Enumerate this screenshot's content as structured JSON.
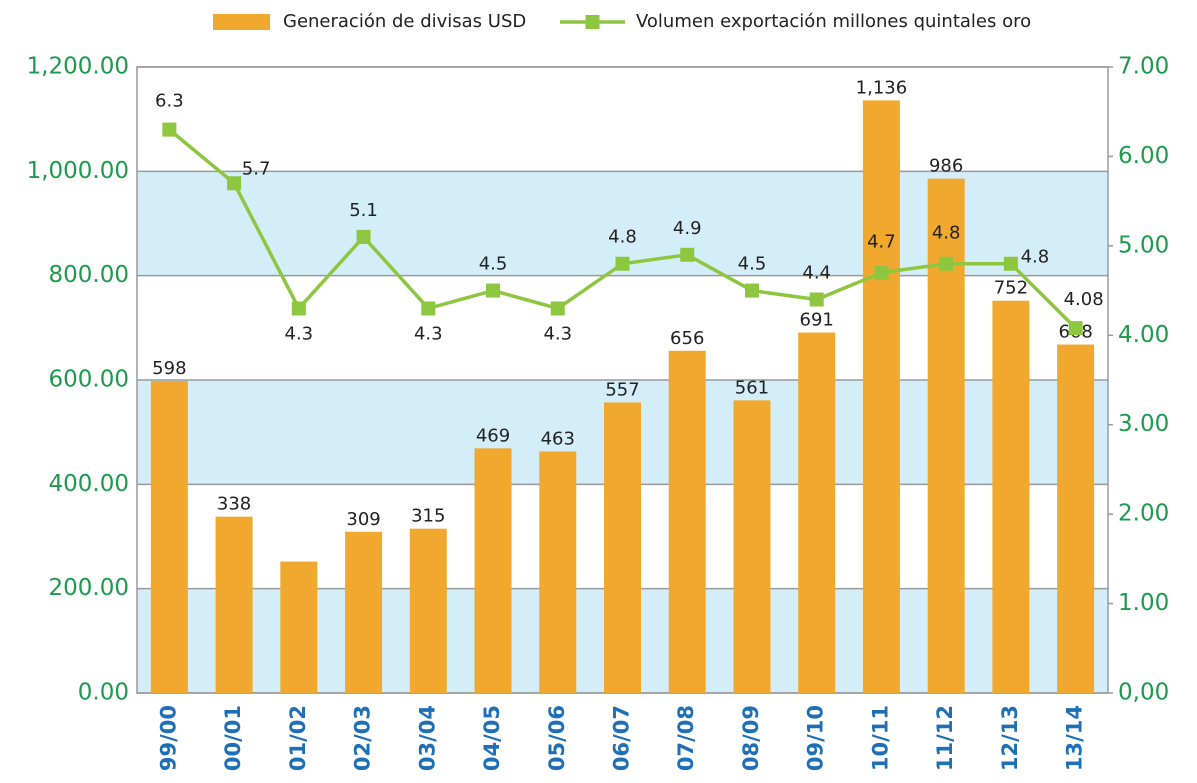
{
  "chart_data": {
    "type": "bar-line",
    "categories": [
      "99/00",
      "00/01",
      "01/02",
      "02/03",
      "03/04",
      "04/05",
      "05/06",
      "06/07",
      "07/08",
      "08/09",
      "09/10",
      "10/11",
      "11/12",
      "12/13",
      "13/14"
    ],
    "series": [
      {
        "name": "Generación de divisas USD",
        "color": "#f0a92e",
        "type": "bar",
        "values": [
          598,
          338,
          252,
          309,
          315,
          469,
          463,
          557,
          656,
          561,
          691,
          1136,
          986,
          752,
          668
        ],
        "value_labels": [
          "598",
          "338",
          null,
          "309",
          "315",
          "469",
          "463",
          "557",
          "656",
          "561",
          "691",
          "1,136",
          "986",
          "752",
          "668"
        ]
      },
      {
        "name": "Volumen exportación millones quintales oro",
        "color": "#8dc63f",
        "type": "line",
        "axis": "y2",
        "values": [
          6.3,
          5.7,
          4.3,
          5.1,
          4.3,
          4.5,
          4.3,
          4.8,
          4.9,
          4.5,
          4.4,
          4.7,
          4.8,
          4.8,
          4.08
        ]
      }
    ],
    "ylim": [
      0,
      1200
    ],
    "yticks": [
      {
        "value": 0,
        "label": "0.00"
      },
      {
        "value": 200,
        "label": "200.00"
      },
      {
        "value": 400,
        "label": "400.00"
      },
      {
        "value": 600,
        "label": "600.00"
      },
      {
        "value": 800,
        "label": "800.00"
      },
      {
        "value": 1000,
        "label": "1,000.00"
      },
      {
        "value": 1200,
        "label": "1,200.00"
      }
    ],
    "y2lim": [
      0,
      7
    ],
    "y2ticks": [
      {
        "value": 0,
        "label": "0,00"
      },
      {
        "value": 1,
        "label": "1.00"
      },
      {
        "value": 2,
        "label": "2.00"
      },
      {
        "value": 3,
        "label": "3.00"
      },
      {
        "value": 4,
        "label": "4.00"
      },
      {
        "value": 5,
        "label": "5.00"
      },
      {
        "value": 6,
        "label": "6.00"
      },
      {
        "value": 7,
        "label": "7.00"
      }
    ],
    "grid": "bands",
    "legend": "top"
  }
}
